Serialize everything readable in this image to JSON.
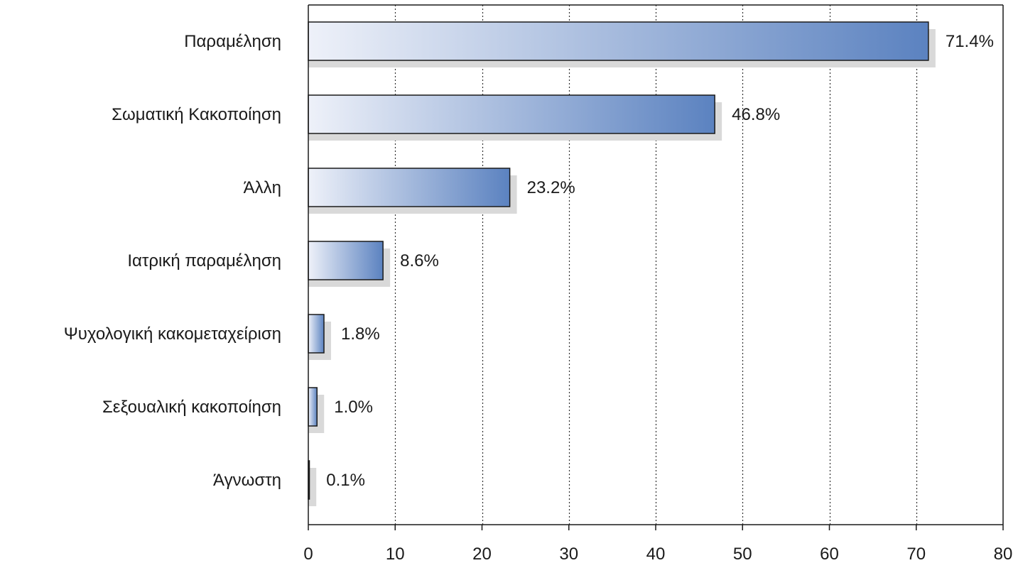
{
  "chart_data": {
    "type": "bar",
    "orientation": "horizontal",
    "categories": [
      "Παραμέληση",
      "Σωματική Κακοποίηση",
      "Άλλη",
      "Ιατρική παραμέληση",
      "Ψυχολογική κακομεταχείριση",
      "Σεξουαλική κακοποίηση",
      "Άγνωστη"
    ],
    "values": [
      71.4,
      46.8,
      23.2,
      8.6,
      1.8,
      1.0,
      0.1
    ],
    "data_labels": [
      "71.4%",
      "46.8%",
      "23.2%",
      "8.6%",
      "1.8%",
      "1.0%",
      "0.1%"
    ],
    "xlim": [
      0,
      80
    ],
    "xticks": [
      "0",
      "10",
      "20",
      "30",
      "40",
      "50",
      "60",
      "70",
      "80"
    ],
    "grid": "vertical dotted",
    "bar_gradient": [
      "#eef1f9",
      "#5b82c0"
    ],
    "shadow_color": "#d9d9d9",
    "title": "",
    "xlabel": "",
    "ylabel": ""
  }
}
